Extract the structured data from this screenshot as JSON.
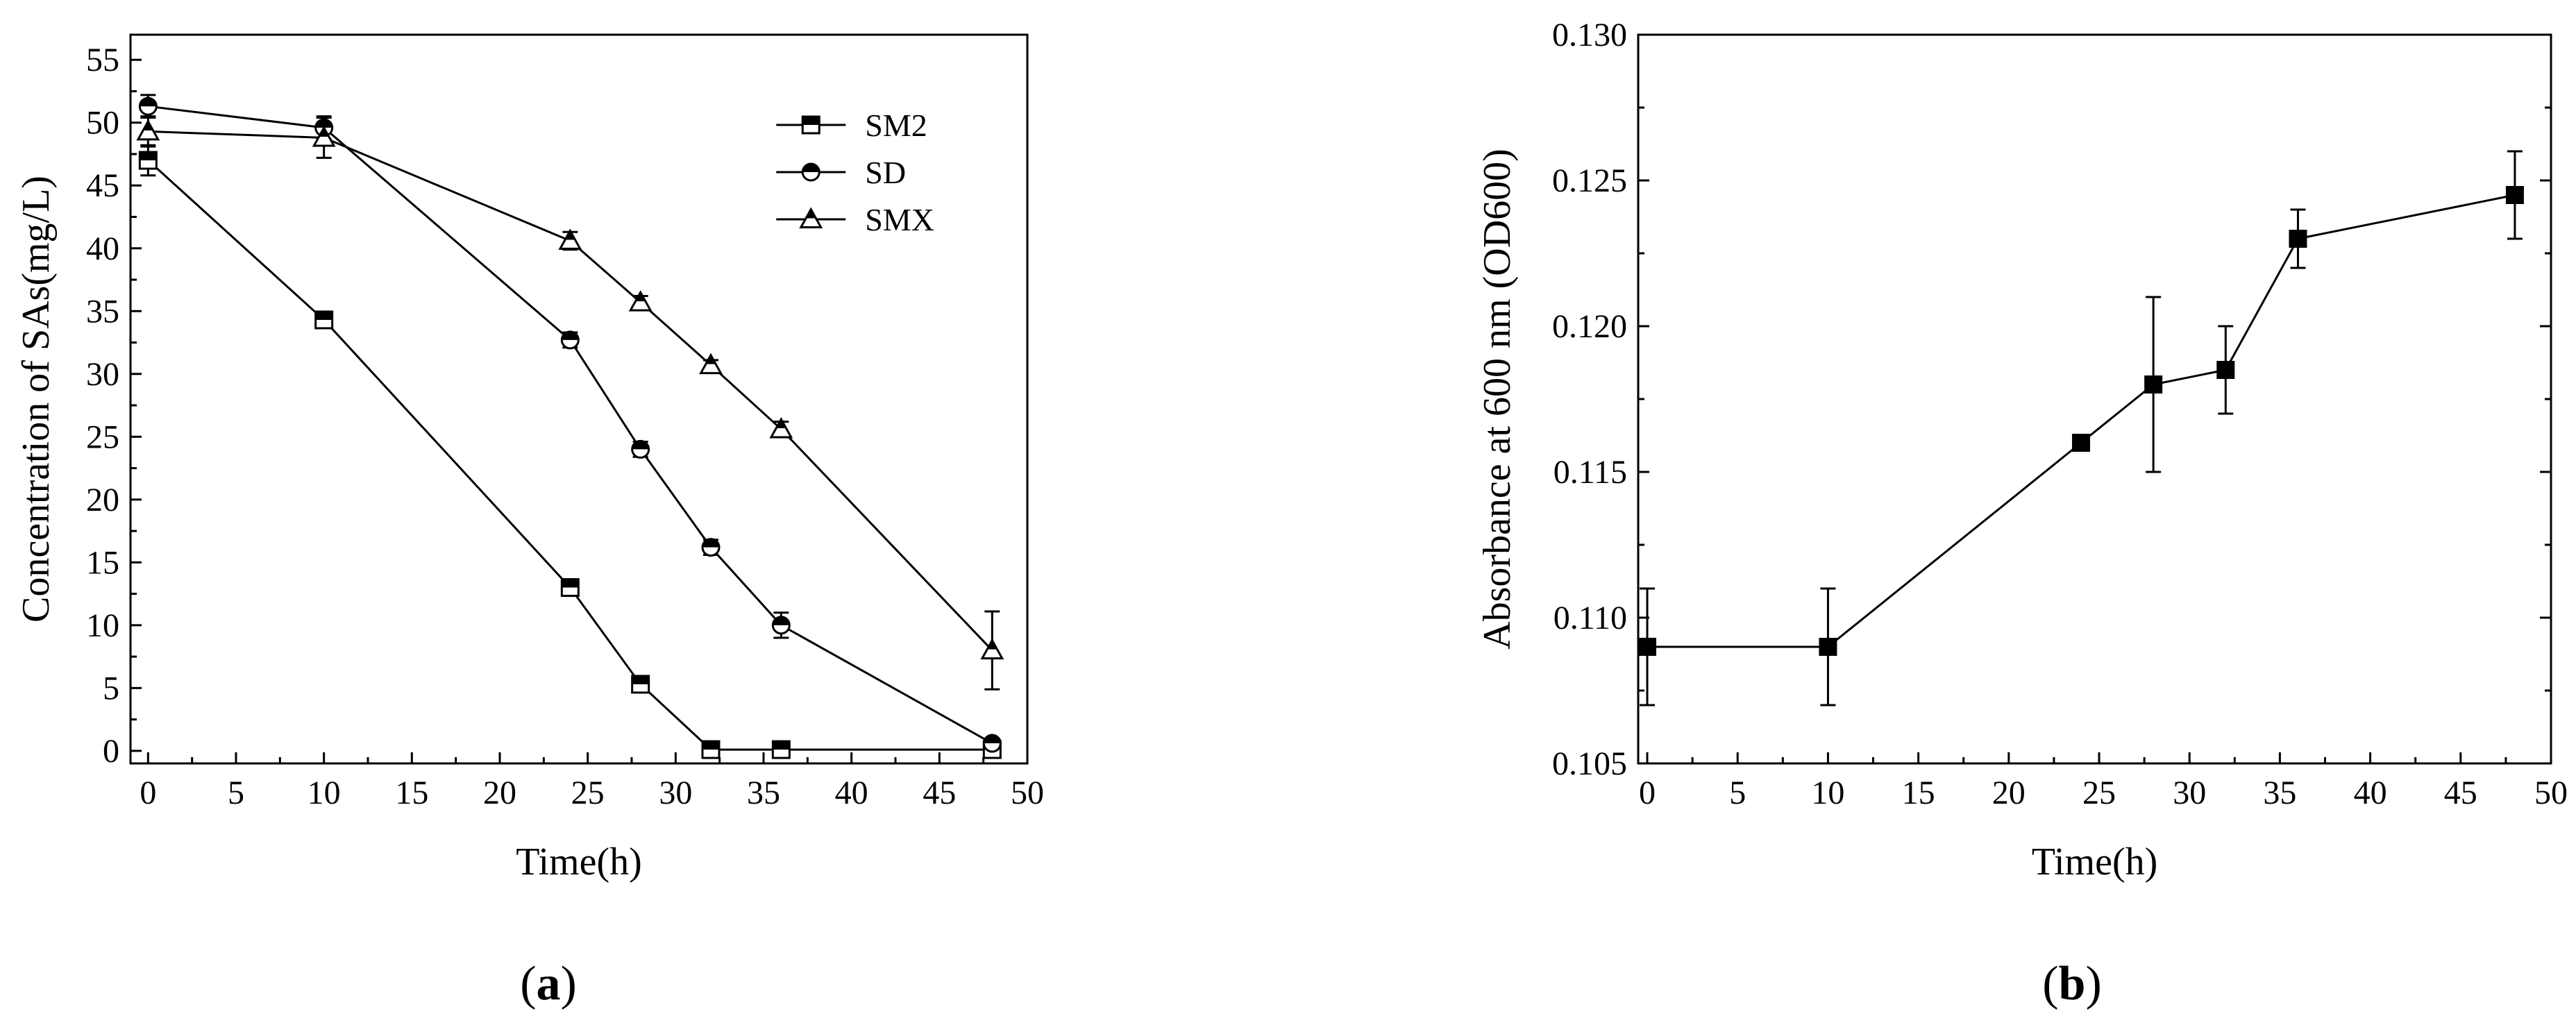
{
  "panels": {
    "a": {
      "label_open": "(",
      "label_letter": "a",
      "label_close": ")"
    },
    "b": {
      "label_open": "(",
      "label_letter": "b",
      "label_close": ")"
    }
  },
  "chart_data": [
    {
      "type": "line",
      "xlabel": "Time(h)",
      "ylabel": "Concentration of SAs(mg/L)",
      "xlim": [
        -1,
        50
      ],
      "ylim": [
        -1,
        57
      ],
      "xticks": [
        0,
        5,
        10,
        15,
        20,
        25,
        30,
        35,
        40,
        45,
        50
      ],
      "yticks": [
        0,
        5,
        10,
        15,
        20,
        25,
        30,
        35,
        40,
        45,
        50,
        55
      ],
      "grid": false,
      "legend": "top-right",
      "x": [
        0,
        10,
        24,
        28,
        32,
        36,
        48
      ],
      "series": [
        {
          "name": "SM2",
          "marker": "half-square",
          "values": [
            47.0,
            34.3,
            13.0,
            5.3,
            0.1,
            0.1,
            0.1
          ],
          "errors": [
            1.2,
            0.5,
            0.6,
            0.6,
            0.3,
            0.3,
            0.3
          ]
        },
        {
          "name": "SD",
          "marker": "half-circle",
          "values": [
            51.3,
            49.6,
            32.7,
            24.0,
            16.2,
            10.0,
            0.6
          ],
          "errors": [
            0.9,
            0.9,
            0.6,
            0.6,
            0.6,
            1.0,
            0.3
          ]
        },
        {
          "name": "SMX",
          "marker": "half-triangle",
          "values": [
            49.3,
            48.8,
            40.6,
            35.7,
            30.7,
            25.6,
            8.0
          ],
          "errors": [
            1.2,
            1.6,
            0.7,
            0.5,
            0.4,
            0.6,
            3.1
          ]
        }
      ]
    },
    {
      "type": "line",
      "xlabel": "Time(h)",
      "ylabel": "Absorbance at 600 nm (OD600)",
      "xlim": [
        -0.5,
        50
      ],
      "ylim": [
        0.105,
        0.13
      ],
      "xticks": [
        0,
        5,
        10,
        15,
        20,
        25,
        30,
        35,
        40,
        45,
        50
      ],
      "yticks": [
        0.105,
        0.11,
        0.115,
        0.12,
        0.125,
        0.13
      ],
      "ytick_labels": [
        "0.105",
        "0.110",
        "0.115",
        "0.120",
        "0.125",
        "0.130"
      ],
      "grid": false,
      "legend": "none",
      "x": [
        0,
        10,
        24,
        28,
        32,
        36,
        48
      ],
      "series": [
        {
          "marker": "square",
          "values": [
            0.109,
            0.109,
            0.116,
            0.118,
            0.1185,
            0.123,
            0.1245
          ],
          "errors": [
            0.002,
            0.002,
            0.0,
            0.003,
            0.0015,
            0.001,
            0.0015
          ]
        }
      ]
    }
  ]
}
